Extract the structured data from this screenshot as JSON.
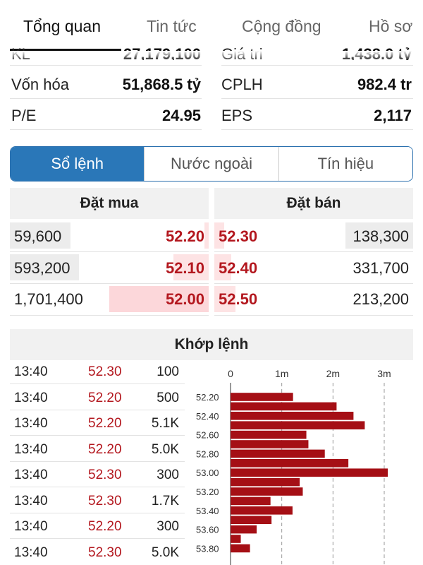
{
  "tabs": [
    {
      "label": "Tổng quan",
      "active": true
    },
    {
      "label": "Tin tức",
      "active": false
    },
    {
      "label": "Cộng đồng",
      "active": false
    },
    {
      "label": "Hồ sơ",
      "active": false
    }
  ],
  "partial_row": {
    "left_label": "KL",
    "left_value": "27,179,100",
    "right_label": "Giá trị",
    "right_value": "1,438.0 tỷ"
  },
  "stats": [
    {
      "left_label": "Vốn hóa",
      "left_value": "51,868.5 tỷ",
      "right_label": "CPLH",
      "right_value": "982.4 tr"
    },
    {
      "left_label": "P/E",
      "left_value": "24.95",
      "right_label": "EPS",
      "right_value": "2,117"
    }
  ],
  "segments": [
    {
      "label": "Sổ lệnh",
      "active": true
    },
    {
      "label": "Nước ngoài",
      "active": false
    },
    {
      "label": "Tín hiệu",
      "active": false
    }
  ],
  "orderbook": {
    "buy_title": "Đặt mua",
    "sell_title": "Đặt bán",
    "bids": [
      {
        "volume": "59,600",
        "price": "52.20"
      },
      {
        "volume": "593,200",
        "price": "52.10"
      },
      {
        "volume": "1,701,400",
        "price": "52.00"
      }
    ],
    "asks": [
      {
        "price": "52.30",
        "volume": "138,300"
      },
      {
        "price": "52.40",
        "volume": "331,700"
      },
      {
        "price": "52.50",
        "volume": "213,200"
      }
    ]
  },
  "matched": {
    "title": "Khớp lệnh",
    "trades": [
      {
        "time": "13:40",
        "price": "52.30",
        "volume": "100"
      },
      {
        "time": "13:40",
        "price": "52.20",
        "volume": "500"
      },
      {
        "time": "13:40",
        "price": "52.20",
        "volume": "5.1K"
      },
      {
        "time": "13:40",
        "price": "52.20",
        "volume": "5.0K"
      },
      {
        "time": "13:40",
        "price": "52.30",
        "volume": "300"
      },
      {
        "time": "13:40",
        "price": "52.30",
        "volume": "1.7K"
      },
      {
        "time": "13:40",
        "price": "52.20",
        "volume": "300"
      },
      {
        "time": "13:40",
        "price": "52.30",
        "volume": "5.0K"
      }
    ]
  },
  "colors": {
    "accent": "#2a77b8",
    "price_red": "#b3171e",
    "bar_red": "#a50f15"
  },
  "chart_data": {
    "type": "bar",
    "orientation": "horizontal",
    "x_ticks": [
      "0",
      "1m",
      "2m",
      "3m"
    ],
    "xlim": [
      0,
      3000000
    ],
    "y_tick_labels": [
      "52.20",
      "52.40",
      "52.60",
      "52.80",
      "53.00",
      "53.20",
      "53.40",
      "53.60",
      "53.80"
    ],
    "categories": [
      "52.20",
      "52.30",
      "52.40",
      "52.50",
      "52.60",
      "52.70",
      "52.80",
      "52.90",
      "53.00",
      "53.10",
      "53.20",
      "53.30",
      "53.40",
      "53.50",
      "53.60",
      "53.70",
      "53.80"
    ],
    "values": [
      1220000,
      2070000,
      2400000,
      2620000,
      1480000,
      1520000,
      1840000,
      2300000,
      3070000,
      1350000,
      1410000,
      780000,
      1210000,
      800000,
      510000,
      200000,
      380000
    ],
    "grid": true
  }
}
